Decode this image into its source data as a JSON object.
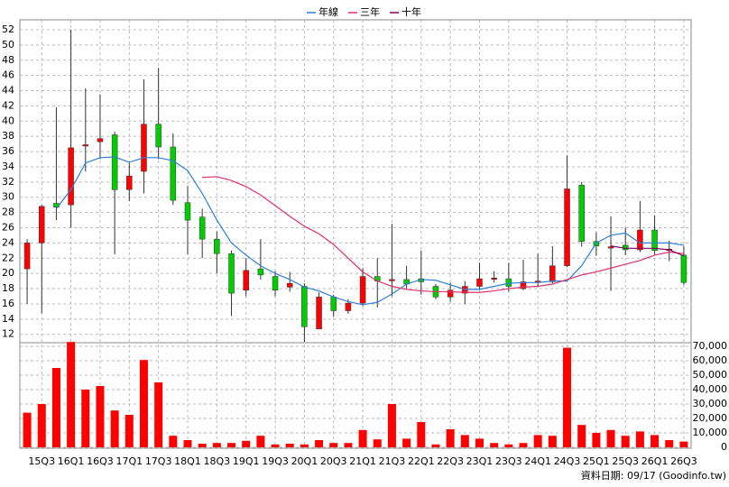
{
  "chart_data": [
    {
      "type": "candlestick",
      "open": [
        20.6,
        24,
        29.2,
        29,
        36.8,
        37.3,
        38.2,
        31,
        33.4,
        39.6,
        36.6,
        29.3,
        27.4,
        24.5,
        22.6,
        17.8,
        20.6,
        19.6,
        18.2,
        18.3,
        12.7,
        16.9,
        15.1,
        16.1,
        19.6,
        19.1,
        19.2,
        19.3,
        18.3,
        16.9,
        17.4,
        18.3,
        19.3,
        19.3,
        18,
        18.9,
        18.9,
        21,
        31.6,
        24.2,
        23.4,
        23.7,
        23.1,
        25.7,
        23.1,
        22.4
      ],
      "high": [
        24.5,
        29,
        41.8,
        52,
        44.3,
        43.5,
        38.6,
        34.5,
        45.5,
        47,
        38.4,
        31.5,
        28.5,
        25.5,
        23,
        22,
        24.5,
        20.3,
        20.2,
        18.7,
        17.5,
        17.2,
        16.6,
        20.7,
        22,
        26.5,
        21,
        23,
        18.6,
        18.8,
        19,
        21.4,
        20.3,
        21.4,
        21.8,
        22.6,
        23.6,
        35.5,
        32,
        25.4,
        27.5,
        26,
        29.5,
        27.6,
        24.3,
        23.6
      ],
      "low": [
        16,
        14.8,
        27,
        26,
        33.4,
        35,
        22.5,
        29.5,
        30.5,
        35,
        29,
        22.5,
        22,
        20,
        14.4,
        17,
        19.2,
        17,
        17.6,
        11,
        12.7,
        14.3,
        14.7,
        15.7,
        15.5,
        17,
        18,
        17.2,
        16.6,
        16.3,
        16,
        17.8,
        18.8,
        17.6,
        17.8,
        18.3,
        18.7,
        20.8,
        23.5,
        22.3,
        17.7,
        22.4,
        22.8,
        22.5,
        21.6,
        18.5
      ],
      "close": [
        24,
        28.8,
        28.7,
        36.5,
        36.9,
        37.7,
        31,
        32.8,
        39.6,
        36.6,
        29.6,
        27,
        24.5,
        22.6,
        17.4,
        20.4,
        19.8,
        17.8,
        18.7,
        13,
        16.9,
        15.1,
        16.1,
        19.6,
        19,
        19.2,
        18.6,
        18.9,
        16.9,
        17.8,
        18.3,
        19.3,
        19.4,
        18.3,
        18.9,
        19,
        21,
        31.1,
        24.2,
        23.6,
        23.5,
        23.1,
        25.7,
        23,
        23.2,
        18.8
      ],
      "up_color": "#ff0000",
      "down_color": "#00cc00",
      "series": [
        {
          "name": "年線",
          "color": "#2f7fd8",
          "values": [
            null,
            null,
            28.5,
            31,
            34.5,
            35.2,
            35.3,
            34.6,
            35.2,
            35.2,
            34.8,
            33.5,
            30.5,
            27,
            24,
            22.4,
            21,
            20,
            19.2,
            18.2,
            17.7,
            16.9,
            16.3,
            15.9,
            16.2,
            17.3,
            18.6,
            19.2,
            19.1,
            18.5,
            17.9,
            17.9,
            18.3,
            18.7,
            18.8,
            18.8,
            19,
            19,
            21,
            24,
            25,
            25.3,
            24,
            24,
            24,
            23.7
          ]
        },
        {
          "name": "三年",
          "color": "#e0306a",
          "values": [
            null,
            null,
            null,
            null,
            null,
            null,
            null,
            null,
            null,
            null,
            null,
            null,
            32.6,
            32.7,
            32.2,
            31.4,
            30.3,
            28.9,
            27.5,
            26.2,
            25.2,
            23.8,
            22,
            20.2,
            19,
            18.3,
            17.9,
            17.7,
            17.6,
            17.6,
            17.5,
            17.5,
            17.7,
            18,
            18.2,
            18.3,
            18.6,
            19.2,
            19.8,
            20.2,
            20.7,
            21.2,
            21.7,
            22.4,
            22.8,
            22.6
          ]
        },
        {
          "name": "十年",
          "color": "#800060",
          "values": [
            null,
            null,
            null,
            null,
            null,
            null,
            null,
            null,
            null,
            null,
            null,
            null,
            null,
            null,
            null,
            null,
            null,
            null,
            null,
            null,
            null,
            null,
            null,
            null,
            null,
            null,
            null,
            null,
            null,
            null,
            null,
            null,
            null,
            null,
            null,
            null,
            null,
            null,
            null,
            null,
            23.6,
            23.3,
            23.3,
            23.3,
            23.1,
            22.3
          ]
        }
      ],
      "ylim": [
        10.9,
        53.3
      ],
      "yticks": [
        12,
        14,
        16,
        18,
        20,
        22,
        24,
        26,
        28,
        30,
        32,
        34,
        36,
        38,
        40,
        42,
        44,
        46,
        48,
        50,
        52
      ],
      "grid": true,
      "legend": "top"
    },
    {
      "type": "bar",
      "categories": [
        null,
        "15Q3",
        null,
        "16Q1",
        null,
        "16Q3",
        null,
        "17Q1",
        null,
        "17Q3",
        null,
        "18Q1",
        null,
        "18Q3",
        null,
        "19Q1",
        null,
        "19Q3",
        null,
        "20Q1",
        null,
        "20Q3",
        null,
        "21Q1",
        null,
        "21Q3",
        null,
        "22Q1",
        null,
        "22Q3",
        null,
        "23Q1",
        null,
        "23Q3",
        null,
        "24Q1",
        null,
        "24Q3",
        null,
        "25Q1",
        null,
        "25Q3",
        null,
        "26Q1",
        null,
        "26Q3"
      ],
      "values": [
        24000,
        30000,
        55000,
        73000,
        40000,
        42500,
        25500,
        22500,
        60500,
        45000,
        8000,
        5000,
        2500,
        3000,
        3000,
        4500,
        8000,
        2000,
        2500,
        2000,
        5000,
        3000,
        3000,
        12000,
        5500,
        30000,
        6000,
        17500,
        2000,
        12500,
        8500,
        6000,
        3000,
        2000,
        3000,
        8500,
        8000,
        69000,
        15500,
        10000,
        12000,
        8000,
        11000,
        8500,
        5000,
        4000
      ],
      "color": "#ff0000",
      "ylim": [
        0,
        72500
      ],
      "yticks": [
        0,
        {
          "value": 10000,
          "label": "10,000"
        },
        {
          "value": 20000,
          "label": "20,000"
        },
        {
          "value": 30000,
          "label": "30,000"
        },
        {
          "value": 40000,
          "label": "40,000"
        },
        {
          "value": 50000,
          "label": "50,000"
        },
        {
          "value": 60000,
          "label": "60,000"
        },
        {
          "value": 70000,
          "label": "70,000"
        }
      ],
      "grid": true,
      "footer": "資料日期: 09/17 (Goodinfo.tw)"
    }
  ]
}
